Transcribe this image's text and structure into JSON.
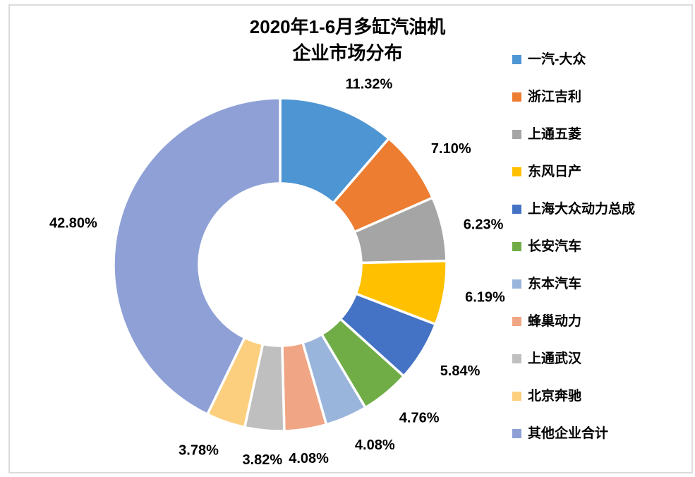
{
  "frame": {
    "border_color": "#DCDCDC",
    "background": "#FFFFFF"
  },
  "chart_data": {
    "type": "pie",
    "subtype": "donut",
    "title_lines": [
      "2020年1-6月多缸汽油机",
      "企业市场分布"
    ],
    "legend_position": "right",
    "start_angle_deg": 0,
    "direction": "clockwise",
    "donut_hole_ratio": 0.49,
    "grid": false,
    "total": 100,
    "series": [
      {
        "name": "一汽-大众",
        "value": 11.32,
        "label": "11.32%",
        "color": "#4E95D3"
      },
      {
        "name": "浙江吉利",
        "value": 7.1,
        "label": "7.10%",
        "color": "#ED7D31"
      },
      {
        "name": "上通五菱",
        "value": 6.23,
        "label": "6.23%",
        "color": "#A5A5A5"
      },
      {
        "name": "东风日产",
        "value": 6.19,
        "label": "6.19%",
        "color": "#FFC000"
      },
      {
        "name": "上海大众动力总成",
        "value": 5.84,
        "label": "5.84%",
        "color": "#4472C4"
      },
      {
        "name": "长安汽车",
        "value": 4.76,
        "label": "4.76%",
        "color": "#70AD47"
      },
      {
        "name": "东本汽车",
        "value": 4.08,
        "label": "4.08%",
        "color": "#9AB5DB"
      },
      {
        "name": "蜂巢动力",
        "value": 4.08,
        "label": "4.08%",
        "color": "#F0A584"
      },
      {
        "name": "上通武汉",
        "value": 3.82,
        "label": "3.82%",
        "color": "#BFBFBF"
      },
      {
        "name": "北京奔驰",
        "value": 3.78,
        "label": "3.78%",
        "color": "#FCCF7E"
      },
      {
        "name": "其他企业合计",
        "value": 42.8,
        "label": "42.80%",
        "color": "#8EA0D6"
      }
    ]
  }
}
